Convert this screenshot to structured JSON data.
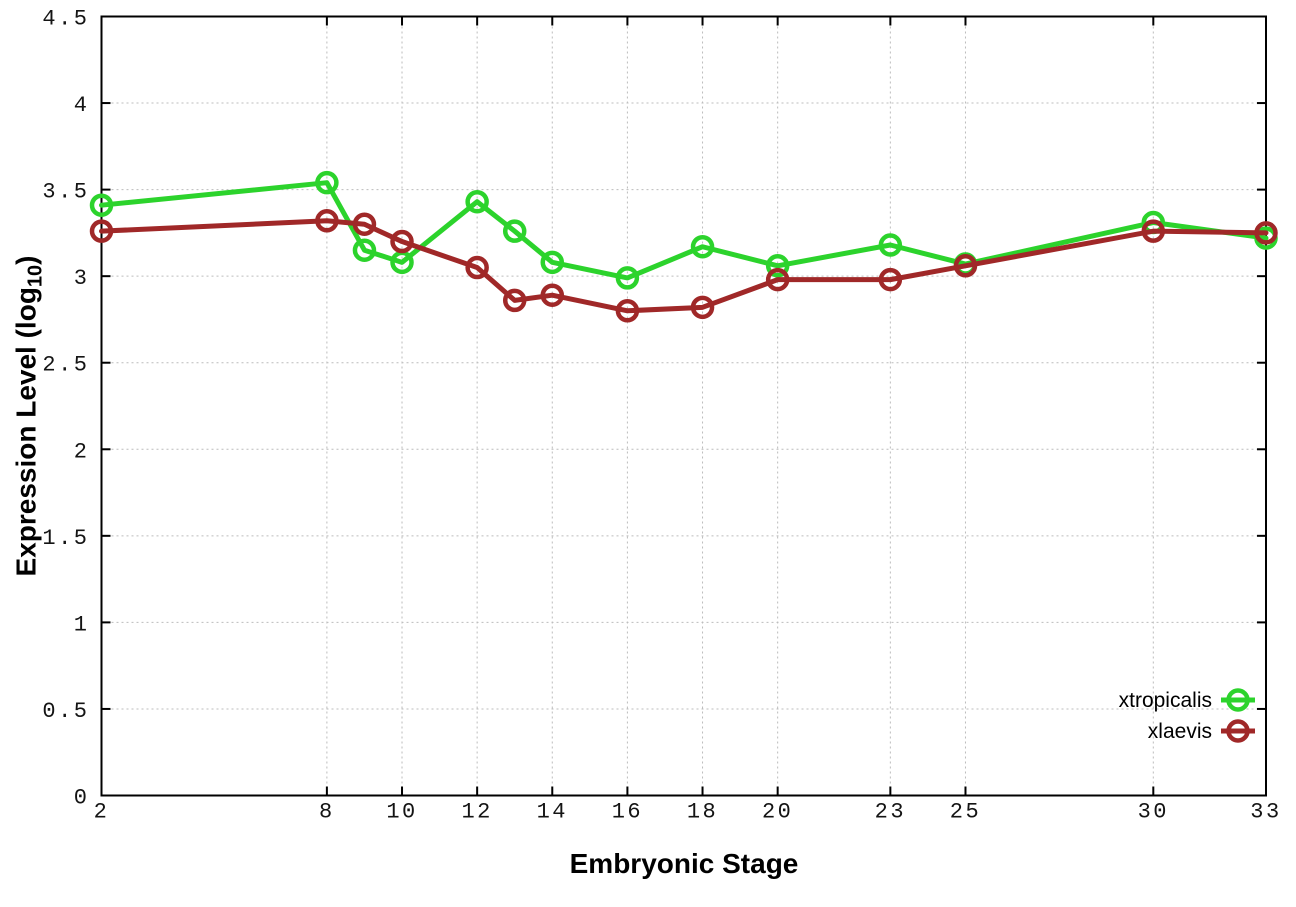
{
  "chart_data": {
    "type": "line",
    "title": "",
    "xlabel": "Embryonic Stage",
    "ylabel": "Expression Level (log10)",
    "ylabel_parts": {
      "main": "Expression Level (log",
      "sub": "10",
      "close": ")"
    },
    "xlim": [
      2,
      33
    ],
    "ylim": [
      0,
      4.5
    ],
    "grid": true,
    "legend_position": "bottom-right-inside",
    "x": [
      2,
      8,
      9,
      10,
      12,
      13,
      14,
      16,
      18,
      20,
      23,
      25,
      30,
      33
    ],
    "xticks": [
      2,
      8,
      10,
      12,
      14,
      16,
      18,
      20,
      23,
      25,
      30,
      33
    ],
    "xtick_labels": [
      "2",
      "8",
      "10",
      "12",
      "14",
      "16",
      "18",
      "20",
      "23",
      "25",
      "30",
      "33"
    ],
    "yticks": [
      0,
      0.5,
      1,
      1.5,
      2,
      2.5,
      3,
      3.5,
      4,
      4.5
    ],
    "ytick_labels": [
      "0",
      "0.5",
      "1",
      "1.5",
      "2",
      "2.5",
      "3",
      "3.5",
      "4",
      "4.5"
    ],
    "series": [
      {
        "name": "xtropicalis",
        "color": "#2cd32c",
        "marker": "open-circle",
        "values": [
          3.41,
          3.54,
          3.15,
          3.08,
          3.43,
          3.26,
          3.08,
          2.99,
          3.17,
          3.06,
          3.18,
          3.07,
          3.31,
          3.22
        ]
      },
      {
        "name": "xlaevis",
        "color": "#a02828",
        "marker": "open-circle",
        "values": [
          3.26,
          3.32,
          3.3,
          3.2,
          3.05,
          2.86,
          2.89,
          2.8,
          2.82,
          2.98,
          2.98,
          3.06,
          3.26,
          3.25
        ]
      }
    ]
  },
  "colors": {
    "background": "#ffffff",
    "axis": "#000000",
    "grid": "#bcbcbc",
    "text": "#141414"
  }
}
